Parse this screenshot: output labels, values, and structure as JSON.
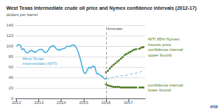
{
  "chart_data": {
    "type": "line",
    "title": "West Texas Intermediate crude oil price and Nymex confidence intervals (2012-17)",
    "subtitle": "dollars per barrel",
    "xlim": [
      2011.95,
      2017.75
    ],
    "xticks": [
      2012,
      2013,
      2014,
      2015,
      2016,
      2017
    ],
    "ylim": [
      0,
      140
    ],
    "yticks": [
      0,
      20,
      40,
      60,
      80,
      100,
      120,
      140
    ],
    "grid": true,
    "series": [
      {
        "label": "West Texas\nIntermediate (WTI)",
        "color": "#3ea8d8",
        "line_style": "solid",
        "x": [
          2012.0,
          2012.083,
          2012.167,
          2012.25,
          2012.333,
          2012.417,
          2012.5,
          2012.583,
          2012.667,
          2012.75,
          2012.833,
          2012.917,
          2013.0,
          2013.083,
          2013.167,
          2013.25,
          2013.333,
          2013.417,
          2013.5,
          2013.583,
          2013.667,
          2013.75,
          2013.833,
          2013.917,
          2014.0,
          2014.083,
          2014.167,
          2014.25,
          2014.333,
          2014.417,
          2014.5,
          2014.583,
          2014.667,
          2014.75,
          2014.833,
          2014.917,
          2015.0,
          2015.083,
          2015.167,
          2015.25,
          2015.333,
          2015.417,
          2015.5,
          2015.583,
          2015.667,
          2015.75,
          2015.833,
          2015.917,
          2016.0
        ],
        "values": [
          100,
          103,
          102,
          93,
          95,
          88,
          87,
          90,
          92,
          90,
          88,
          90,
          93,
          94,
          93,
          88,
          88,
          92,
          98,
          100,
          101,
          96,
          93,
          92,
          94,
          95,
          96,
          100,
          99,
          100,
          102,
          102,
          97,
          90,
          78,
          65,
          50,
          47,
          55,
          60,
          58,
          62,
          60,
          47,
          47,
          44,
          42,
          38,
          37
        ]
      },
      {
        "color": "#6bbde0",
        "line_style": "dashed",
        "x": [
          2016.0,
          2016.15,
          2016.3,
          2016.5,
          2016.65,
          2016.83,
          2017.0,
          2017.17,
          2017.33,
          2017.5,
          2017.65
        ],
        "values": [
          37,
          38,
          40,
          42,
          43,
          44,
          45,
          47,
          48,
          50,
          53
        ]
      },
      {
        "label": "WTI 95% Nymex\nfutures price\nconfidence interval\nupper bound",
        "color": "#4a7a1e",
        "line_style": "dashed",
        "marker": "circle",
        "x": [
          2016.0,
          2016.083,
          2016.167,
          2016.25,
          2016.333,
          2016.417,
          2016.5,
          2016.583,
          2016.667,
          2016.75,
          2016.833,
          2016.917,
          2017.0,
          2017.083,
          2017.167,
          2017.25,
          2017.333,
          2017.5,
          2017.583,
          2017.667
        ],
        "values": [
          50,
          53,
          57,
          61,
          64,
          67,
          70,
          73,
          76,
          79,
          83,
          85,
          87,
          89,
          91,
          93,
          94,
          95,
          97,
          98
        ]
      },
      {
        "label": "confidence interval\nlower bound",
        "color": "#4a7a1e",
        "line_style": "dashed",
        "marker": "circle",
        "x": [
          2016.0,
          2016.083,
          2016.167,
          2016.25,
          2016.333,
          2016.417,
          2016.5,
          2016.583,
          2016.667,
          2016.75,
          2016.833,
          2016.917,
          2017.0,
          2017.083,
          2017.167,
          2017.25,
          2017.333,
          2017.5,
          2017.583,
          2017.667
        ],
        "values": [
          27,
          25,
          24,
          23,
          22,
          22,
          22,
          22,
          21,
          21,
          21,
          21,
          21,
          21,
          21,
          21,
          21,
          21,
          21,
          21
        ]
      }
    ],
    "annotations": [
      {
        "text": "forecast",
        "x": 2016.0,
        "color": "#888888"
      },
      {
        "text": "eia",
        "color": "#3366aa"
      }
    ]
  }
}
